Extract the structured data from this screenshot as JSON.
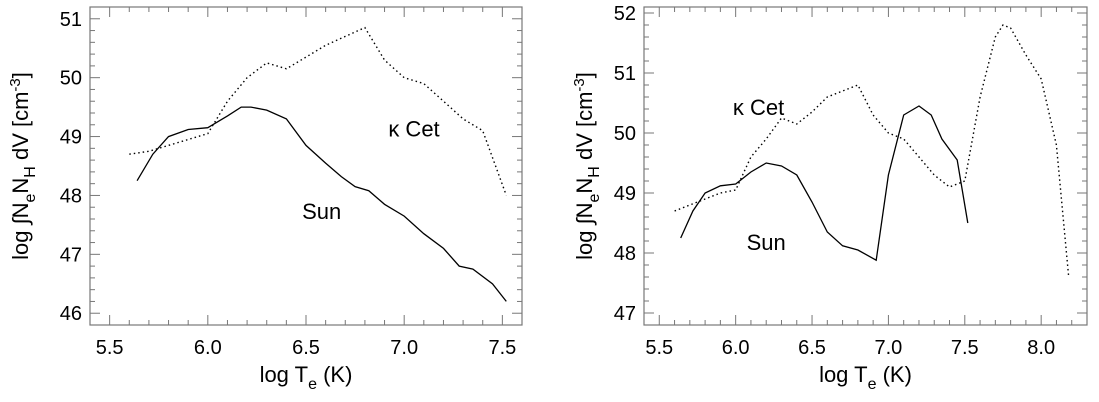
{
  "chart_data": [
    {
      "type": "line",
      "xlabel": {
        "main": "log T",
        "sub": "e",
        "tail": " (K)"
      },
      "ylabel": {
        "p1": "log ∫N",
        "s1": "e",
        "p2": "N",
        "s2": "H",
        "p3": " dV [cm",
        "sup": "-3",
        "p4": "]"
      },
      "xlim": [
        5.4,
        7.6
      ],
      "ylim": [
        45.8,
        51.2
      ],
      "xticks": [
        5.5,
        6.0,
        6.5,
        7.0,
        7.5
      ],
      "xtick_labels": [
        "5.5",
        "6.0",
        "6.5",
        "7.0",
        "7.5"
      ],
      "yticks": [
        46,
        47,
        48,
        49,
        50,
        51
      ],
      "ytick_labels": [
        "46",
        "47",
        "48",
        "49",
        "50",
        "51"
      ],
      "annotations": [
        {
          "text": "κ Cet",
          "x": 7.05,
          "y": 49.0
        },
        {
          "text": "Sun",
          "x": 6.58,
          "y": 47.6
        }
      ],
      "series": [
        {
          "name": "Sun",
          "style": "solid",
          "x": [
            5.64,
            5.72,
            5.8,
            5.9,
            6.0,
            6.1,
            6.17,
            6.22,
            6.3,
            6.4,
            6.5,
            6.6,
            6.68,
            6.75,
            6.82,
            6.9,
            7.0,
            7.1,
            7.2,
            7.28,
            7.35,
            7.45,
            7.52
          ],
          "y": [
            48.25,
            48.7,
            49.0,
            49.12,
            49.15,
            49.35,
            49.5,
            49.5,
            49.45,
            49.3,
            48.85,
            48.55,
            48.32,
            48.15,
            48.08,
            47.85,
            47.65,
            47.35,
            47.1,
            46.8,
            46.75,
            46.5,
            46.2
          ]
        },
        {
          "name": "κ Cet",
          "style": "dotted",
          "x": [
            5.6,
            5.7,
            5.8,
            5.9,
            6.0,
            6.1,
            6.2,
            6.3,
            6.4,
            6.5,
            6.6,
            6.7,
            6.8,
            6.9,
            7.0,
            7.1,
            7.2,
            7.3,
            7.4,
            7.52
          ],
          "y": [
            48.7,
            48.75,
            48.85,
            48.95,
            49.05,
            49.6,
            50.0,
            50.25,
            50.15,
            50.35,
            50.55,
            50.7,
            50.85,
            50.3,
            50.0,
            49.9,
            49.6,
            49.3,
            49.1,
            48.0
          ]
        }
      ]
    },
    {
      "type": "line",
      "xlabel": {
        "main": "log T",
        "sub": "e",
        "tail": " (K)"
      },
      "ylabel": {
        "p1": "log ∫N",
        "s1": "e",
        "p2": "N",
        "s2": "H",
        "p3": " dV [cm",
        "sup": "-3",
        "p4": "]"
      },
      "xlim": [
        5.4,
        8.3
      ],
      "ylim": [
        46.8,
        52.1
      ],
      "xticks": [
        5.5,
        6.0,
        6.5,
        7.0,
        7.5,
        8.0
      ],
      "xtick_labels": [
        "5.5",
        "6.0",
        "6.5",
        "7.0",
        "7.5",
        "8.0"
      ],
      "yticks": [
        47,
        48,
        49,
        50,
        51,
        52
      ],
      "ytick_labels": [
        "47",
        "48",
        "49",
        "50",
        "51",
        "52"
      ],
      "annotations": [
        {
          "text": "κ Cet",
          "x": 6.15,
          "y": 50.3
        },
        {
          "text": "Sun",
          "x": 6.2,
          "y": 48.05
        }
      ],
      "series": [
        {
          "name": "Sun",
          "style": "solid",
          "x": [
            5.64,
            5.72,
            5.8,
            5.9,
            6.0,
            6.1,
            6.2,
            6.3,
            6.4,
            6.5,
            6.6,
            6.7,
            6.8,
            6.92,
            7.0,
            7.1,
            7.2,
            7.28,
            7.35,
            7.45,
            7.52
          ],
          "y": [
            48.25,
            48.7,
            49.0,
            49.12,
            49.15,
            49.35,
            49.5,
            49.45,
            49.3,
            48.85,
            48.35,
            48.12,
            48.05,
            47.88,
            49.3,
            50.3,
            50.45,
            50.3,
            49.9,
            49.55,
            48.5
          ]
        },
        {
          "name": "κ Cet",
          "style": "dotted",
          "x": [
            5.6,
            5.7,
            5.8,
            5.9,
            6.0,
            6.1,
            6.2,
            6.3,
            6.4,
            6.5,
            6.6,
            6.7,
            6.8,
            6.9,
            7.0,
            7.1,
            7.2,
            7.3,
            7.4,
            7.5,
            7.6,
            7.7,
            7.75,
            7.8,
            7.9,
            8.0,
            8.1,
            8.18
          ],
          "y": [
            48.7,
            48.8,
            48.9,
            49.0,
            49.05,
            49.6,
            49.9,
            50.25,
            50.15,
            50.35,
            50.6,
            50.7,
            50.8,
            50.3,
            50.0,
            49.9,
            49.6,
            49.3,
            49.1,
            49.2,
            50.6,
            51.6,
            51.8,
            51.75,
            51.3,
            50.9,
            49.8,
            47.6
          ]
        }
      ]
    }
  ]
}
